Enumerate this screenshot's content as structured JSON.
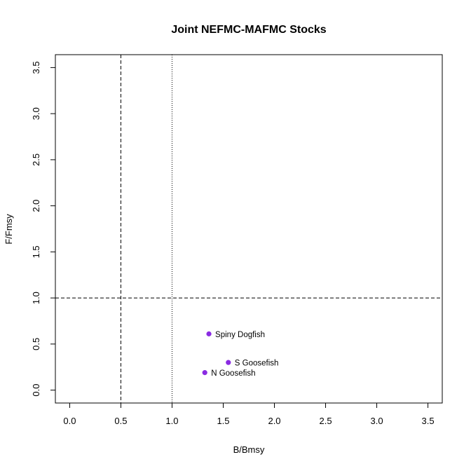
{
  "chart_data": {
    "type": "scatter",
    "title": "Joint NEFMC-MAFMC Stocks",
    "xlabel": "B/Bmsy",
    "ylabel": "F/Fmsy",
    "xlim": [
      -0.14,
      3.64
    ],
    "ylim": [
      -0.14,
      3.64
    ],
    "xticks": [
      0.0,
      0.5,
      1.0,
      1.5,
      2.0,
      2.5,
      3.0,
      3.5
    ],
    "yticks": [
      0.0,
      0.5,
      1.0,
      1.5,
      2.0,
      2.5,
      3.0,
      3.5
    ],
    "xtick_labels": [
      "0.0",
      "0.5",
      "1.0",
      "1.5",
      "2.0",
      "2.5",
      "3.0",
      "3.5"
    ],
    "ytick_labels": [
      "0.0",
      "0.5",
      "1.0",
      "1.5",
      "2.0",
      "2.5",
      "3.0",
      "3.5"
    ],
    "point_color": "#8A2BE2",
    "reference_lines": [
      {
        "orientation": "vertical",
        "value": 0.5,
        "style": "dashed"
      },
      {
        "orientation": "vertical",
        "value": 1.0,
        "style": "dotted"
      },
      {
        "orientation": "horizontal",
        "value": 1.0,
        "style": "dashed"
      }
    ],
    "points": [
      {
        "name": "Spiny Dogfish",
        "x": 1.36,
        "y": 0.61
      },
      {
        "name": "S Goosefish",
        "x": 1.55,
        "y": 0.3
      },
      {
        "name": "N Goosefish",
        "x": 1.32,
        "y": 0.19
      }
    ]
  }
}
